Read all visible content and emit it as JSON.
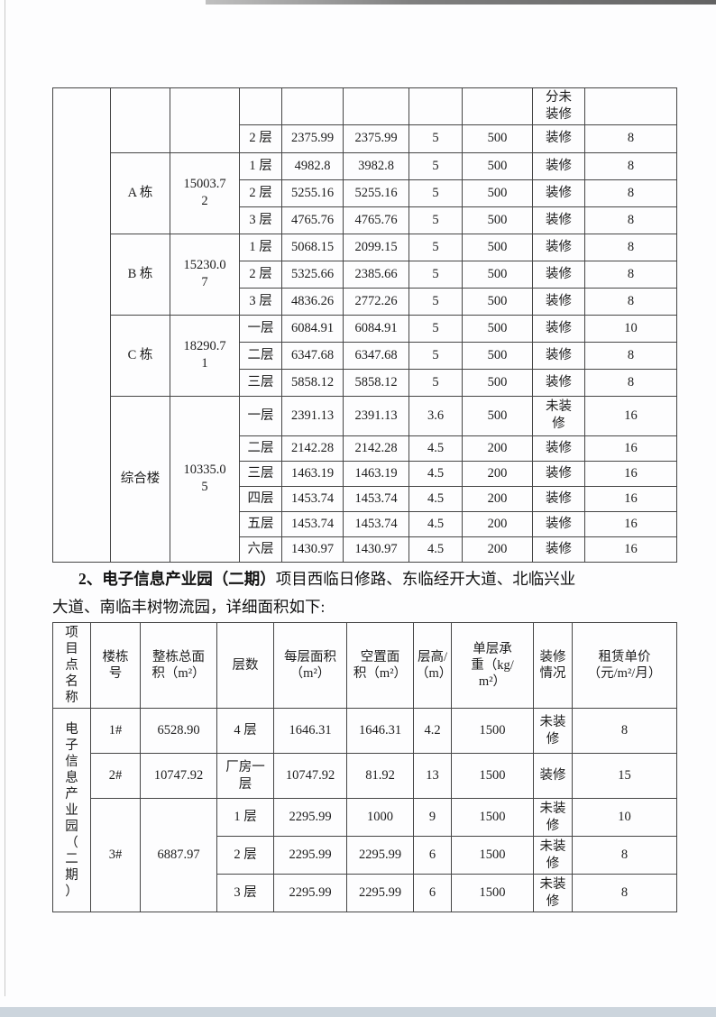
{
  "intro": {
    "lead": "2、电子信息产业园（二期）",
    "line1_rest": "项目西临日修路、东临经开大道、北临兴业",
    "line2": "大道、南临丰树物流园，详细面积如下:"
  },
  "table1": {
    "rows": [
      {
        "cells": [
          {
            "t": "",
            "rs": 17,
            "n": "project-name-cell"
          },
          {
            "t": "",
            "rs": 2,
            "n": "building-cell"
          },
          {
            "t": "",
            "rs": 2,
            "n": "total-area-cell"
          },
          {
            "t": ""
          },
          {
            "t": ""
          },
          {
            "t": ""
          },
          {
            "t": ""
          },
          {
            "t": ""
          },
          {
            "t": "分未\n装修",
            "n": "decoration-cell"
          },
          {
            "t": "",
            "n": "rent-cell"
          }
        ]
      },
      {
        "cells": [
          {
            "t": "2 层"
          },
          {
            "t": "2375.99"
          },
          {
            "t": "2375.99"
          },
          {
            "t": "5"
          },
          {
            "t": "500"
          },
          {
            "t": "装修"
          },
          {
            "t": "8"
          }
        ]
      },
      {
        "cells": [
          {
            "t": "A 栋",
            "rs": 3,
            "n": "building-cell"
          },
          {
            "t": "15003.7\n2",
            "rs": 3,
            "n": "total-area-cell"
          },
          {
            "t": "1 层"
          },
          {
            "t": "4982.8"
          },
          {
            "t": "3982.8"
          },
          {
            "t": "5"
          },
          {
            "t": "500"
          },
          {
            "t": "装修"
          },
          {
            "t": "8"
          }
        ]
      },
      {
        "cells": [
          {
            "t": "2 层"
          },
          {
            "t": "5255.16"
          },
          {
            "t": "5255.16"
          },
          {
            "t": "5"
          },
          {
            "t": "500"
          },
          {
            "t": "装修"
          },
          {
            "t": "8"
          }
        ]
      },
      {
        "cells": [
          {
            "t": "3 层"
          },
          {
            "t": "4765.76"
          },
          {
            "t": "4765.76"
          },
          {
            "t": "5"
          },
          {
            "t": "500"
          },
          {
            "t": "装修"
          },
          {
            "t": "8"
          }
        ]
      },
      {
        "cells": [
          {
            "t": "B 栋",
            "rs": 3,
            "n": "building-cell"
          },
          {
            "t": "15230.0\n7",
            "rs": 3,
            "n": "total-area-cell"
          },
          {
            "t": "1 层"
          },
          {
            "t": "5068.15"
          },
          {
            "t": "2099.15"
          },
          {
            "t": "5"
          },
          {
            "t": "500"
          },
          {
            "t": "装修"
          },
          {
            "t": "8"
          }
        ]
      },
      {
        "cells": [
          {
            "t": "2 层"
          },
          {
            "t": "5325.66"
          },
          {
            "t": "2385.66"
          },
          {
            "t": "5"
          },
          {
            "t": "500"
          },
          {
            "t": "装修"
          },
          {
            "t": "8"
          }
        ]
      },
      {
        "cells": [
          {
            "t": "3 层"
          },
          {
            "t": "4836.26"
          },
          {
            "t": "2772.26"
          },
          {
            "t": "5"
          },
          {
            "t": "500"
          },
          {
            "t": "装修"
          },
          {
            "t": "8"
          }
        ]
      },
      {
        "cells": [
          {
            "t": "C 栋",
            "rs": 3,
            "n": "building-cell"
          },
          {
            "t": "18290.7\n1",
            "rs": 3,
            "n": "total-area-cell"
          },
          {
            "t": "一层"
          },
          {
            "t": "6084.91"
          },
          {
            "t": "6084.91"
          },
          {
            "t": "5"
          },
          {
            "t": "500"
          },
          {
            "t": "装修"
          },
          {
            "t": "10"
          }
        ]
      },
      {
        "cells": [
          {
            "t": "二层"
          },
          {
            "t": "6347.68"
          },
          {
            "t": "6347.68"
          },
          {
            "t": "5"
          },
          {
            "t": "500"
          },
          {
            "t": "装修"
          },
          {
            "t": "8"
          }
        ]
      },
      {
        "cells": [
          {
            "t": "三层"
          },
          {
            "t": "5858.12"
          },
          {
            "t": "5858.12"
          },
          {
            "t": "5"
          },
          {
            "t": "500"
          },
          {
            "t": "装修"
          },
          {
            "t": "8"
          }
        ]
      },
      {
        "cells": [
          {
            "t": "综合楼",
            "rs": 6,
            "n": "building-cell"
          },
          {
            "t": "10335.0\n5",
            "rs": 6,
            "n": "total-area-cell"
          },
          {
            "t": "一层"
          },
          {
            "t": "2391.13"
          },
          {
            "t": "2391.13"
          },
          {
            "t": "3.6"
          },
          {
            "t": "500"
          },
          {
            "t": "未装\n修"
          },
          {
            "t": "16"
          }
        ]
      },
      {
        "cells": [
          {
            "t": "二层"
          },
          {
            "t": "2142.28"
          },
          {
            "t": "2142.28"
          },
          {
            "t": "4.5"
          },
          {
            "t": "200"
          },
          {
            "t": "装修"
          },
          {
            "t": "16"
          }
        ]
      },
      {
        "cells": [
          {
            "t": "三层"
          },
          {
            "t": "1463.19"
          },
          {
            "t": "1463.19"
          },
          {
            "t": "4.5"
          },
          {
            "t": "200"
          },
          {
            "t": "装修"
          },
          {
            "t": "16"
          }
        ]
      },
      {
        "cells": [
          {
            "t": "四层"
          },
          {
            "t": "1453.74"
          },
          {
            "t": "1453.74"
          },
          {
            "t": "4.5"
          },
          {
            "t": "200"
          },
          {
            "t": "装修"
          },
          {
            "t": "16"
          }
        ]
      },
      {
        "cells": [
          {
            "t": "五层"
          },
          {
            "t": "1453.74"
          },
          {
            "t": "1453.74"
          },
          {
            "t": "4.5"
          },
          {
            "t": "200"
          },
          {
            "t": "装修"
          },
          {
            "t": "16"
          }
        ]
      },
      {
        "cells": [
          {
            "t": "六层"
          },
          {
            "t": "1430.97"
          },
          {
            "t": "1430.97"
          },
          {
            "t": "4.5"
          },
          {
            "t": "200"
          },
          {
            "t": "装修"
          },
          {
            "t": "16"
          }
        ]
      }
    ]
  },
  "table2": {
    "rows": [
      {
        "cells": [
          {
            "t": "项\n目\n点\n名\n称",
            "h": true,
            "cls": "vcell",
            "n": "header-project-name"
          },
          {
            "t": "楼栋\n号",
            "h": true,
            "n": "header-building-no"
          },
          {
            "t": "整栋总面\n积（m²）",
            "h": true,
            "n": "header-total-area"
          },
          {
            "t": "层数",
            "h": true,
            "n": "header-floor"
          },
          {
            "t": "每层面积\n（m²）",
            "h": true,
            "n": "header-floor-area"
          },
          {
            "t": "空置面\n积（m²）",
            "h": true,
            "n": "header-vacant-area"
          },
          {
            "t": "层高/\n（m）",
            "h": true,
            "n": "header-floor-height"
          },
          {
            "t": "单层承\n重（kg/\nm²）",
            "h": true,
            "n": "header-load-capacity"
          },
          {
            "t": "装修\n情况",
            "h": true,
            "n": "header-decoration"
          },
          {
            "t": "租赁单价\n（元/m²/月）",
            "h": true,
            "n": "header-rent-price"
          }
        ]
      },
      {
        "cells": [
          {
            "t": "电\n子\n信\n息\n产\n业\n园\n（\n二\n期\n）",
            "rs": 5,
            "cls": "vcell",
            "n": "project-name-cell"
          },
          {
            "t": "1#"
          },
          {
            "t": "6528.90"
          },
          {
            "t": "4 层"
          },
          {
            "t": "1646.31"
          },
          {
            "t": "1646.31"
          },
          {
            "t": "4.2"
          },
          {
            "t": "1500"
          },
          {
            "t": "未装\n修"
          },
          {
            "t": "8"
          }
        ]
      },
      {
        "cells": [
          {
            "t": "2#"
          },
          {
            "t": "10747.92"
          },
          {
            "t": "厂房一\n层"
          },
          {
            "t": "10747.92"
          },
          {
            "t": "81.92"
          },
          {
            "t": "13"
          },
          {
            "t": "1500"
          },
          {
            "t": "装修"
          },
          {
            "t": "15"
          }
        ]
      },
      {
        "cells": [
          {
            "t": "3#",
            "rs": 3,
            "n": "building-cell"
          },
          {
            "t": "6887.97",
            "rs": 3,
            "n": "total-area-cell"
          },
          {
            "t": "1 层"
          },
          {
            "t": "2295.99"
          },
          {
            "t": "1000"
          },
          {
            "t": "9"
          },
          {
            "t": "1500"
          },
          {
            "t": "未装\n修"
          },
          {
            "t": "10"
          }
        ]
      },
      {
        "cells": [
          {
            "t": "2 层"
          },
          {
            "t": "2295.99"
          },
          {
            "t": "2295.99"
          },
          {
            "t": "6"
          },
          {
            "t": "1500"
          },
          {
            "t": "未装\n修"
          },
          {
            "t": "8"
          }
        ]
      },
      {
        "cells": [
          {
            "t": "3 层"
          },
          {
            "t": "2295.99"
          },
          {
            "t": "2295.99"
          },
          {
            "t": "6"
          },
          {
            "t": "1500"
          },
          {
            "t": "未装\n修"
          },
          {
            "t": "8"
          }
        ]
      }
    ]
  }
}
